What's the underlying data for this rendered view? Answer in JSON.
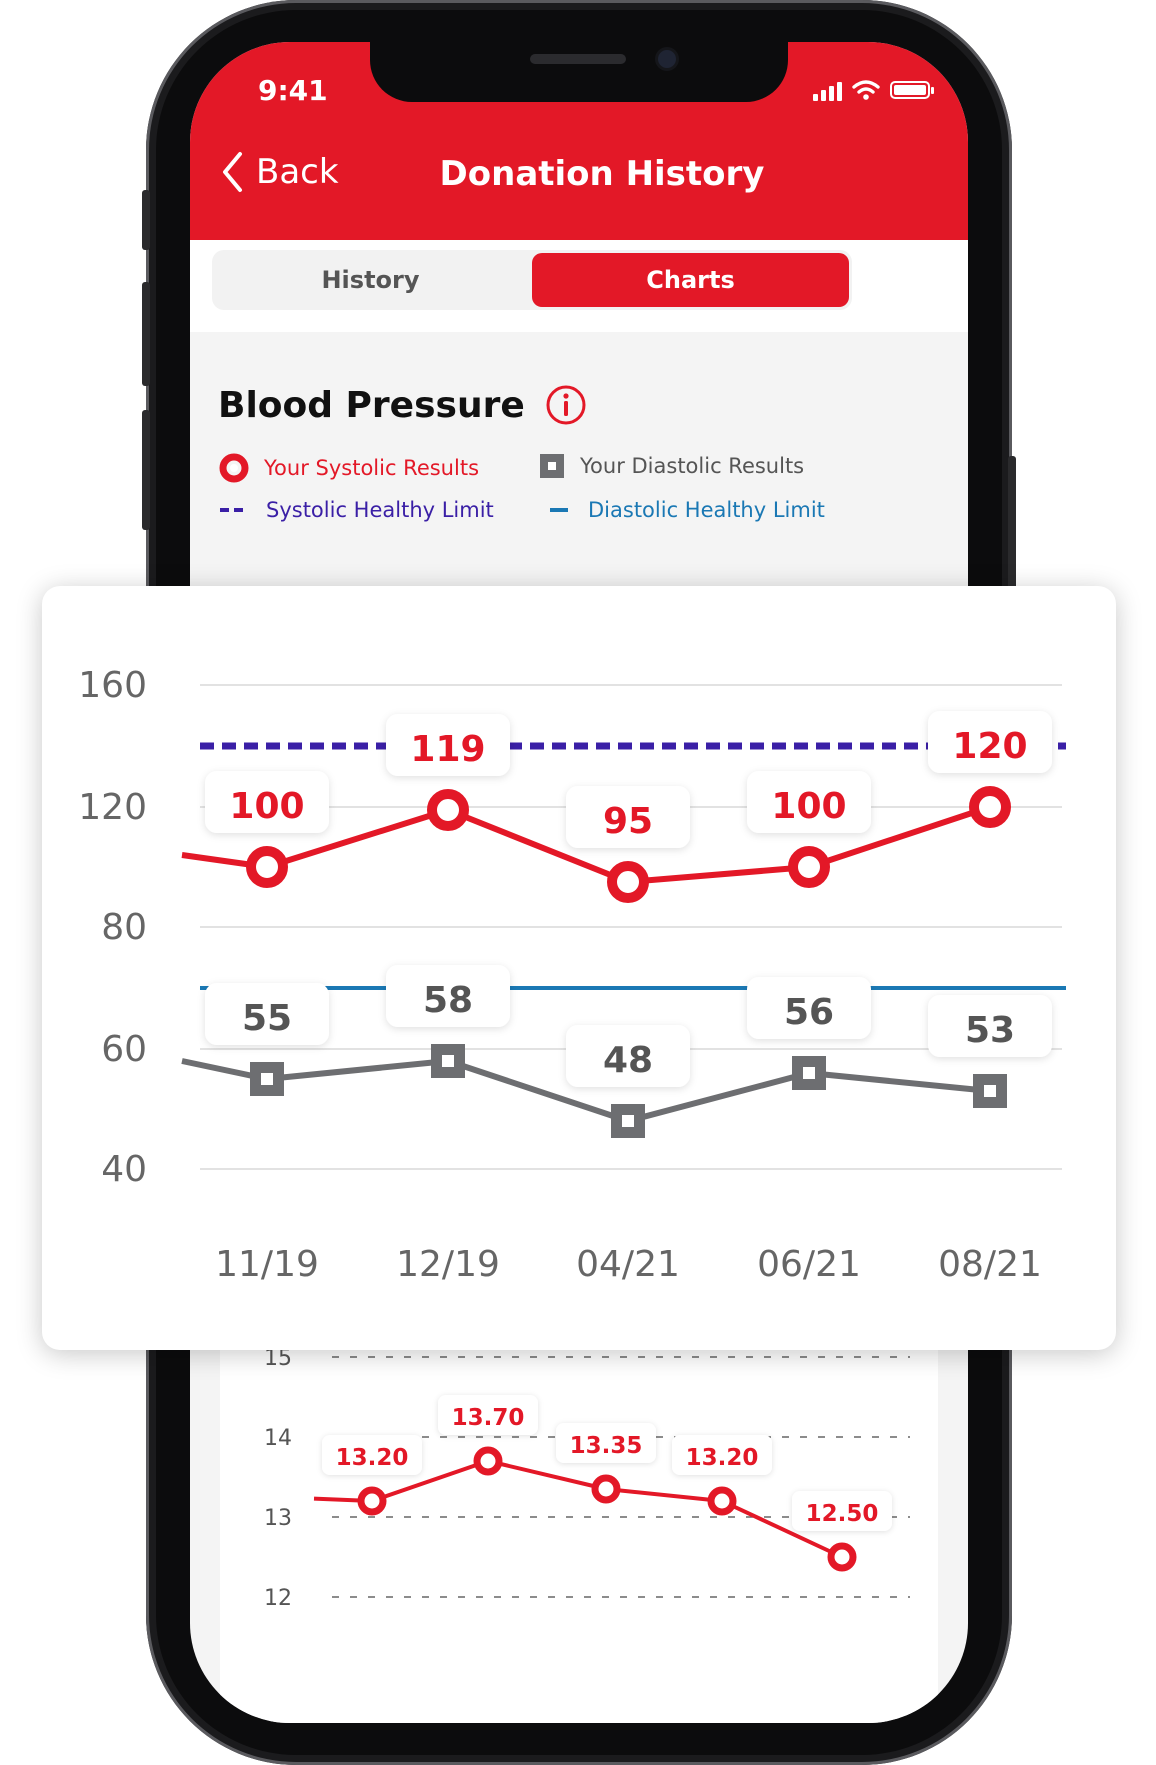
{
  "status_bar": {
    "time": "9:41",
    "icons": [
      "cellular-signal-icon",
      "wifi-icon",
      "battery-icon"
    ]
  },
  "nav": {
    "back_label": "Back",
    "title": "Donation History"
  },
  "tabs": [
    {
      "label": "History",
      "active": false
    },
    {
      "label": "Charts",
      "active": true
    }
  ],
  "section": {
    "title": "Blood Pressure",
    "info_icon": "info-icon"
  },
  "legend": {
    "systolic_results": "Your Systolic Results",
    "diastolic_results": "Your Diastolic Results",
    "systolic_limit": "Systolic Healthy Limit",
    "diastolic_limit": "Diastolic Healthy Limit"
  },
  "colors": {
    "brand_red": "#e31827",
    "systolic_limit": "#3a1fa6",
    "diastolic_limit": "#1a78b4",
    "diastolic_series": "#6d6e71"
  },
  "chart_data": [
    {
      "type": "line",
      "categories": [
        "11/19",
        "12/19",
        "04/21",
        "06/21",
        "08/21"
      ],
      "y_ticks": [
        "160",
        "120",
        "80",
        "60",
        "40"
      ],
      "y_tick_values": [
        160,
        120,
        80,
        60,
        40
      ],
      "series": [
        {
          "name": "Your Systolic Results",
          "values": [
            100,
            119,
            95,
            100,
            120
          ],
          "labels": [
            "100",
            "119",
            "95",
            "100",
            "120"
          ],
          "color": "#e31827",
          "marker": "circle"
        },
        {
          "name": "Your Diastolic Results",
          "values": [
            55,
            58,
            48,
            56,
            53
          ],
          "labels": [
            "55",
            "58",
            "48",
            "56",
            "53"
          ],
          "color": "#6d6e71",
          "marker": "square"
        },
        {
          "name": "Systolic Healthy Limit",
          "values": [
            140,
            140,
            140,
            140,
            140
          ],
          "style": "dashed",
          "color": "#3a1fa6"
        },
        {
          "name": "Diastolic Healthy Limit",
          "values": [
            70,
            70,
            70,
            70,
            70
          ],
          "style": "solid",
          "color": "#1a78b4"
        }
      ],
      "grid": true
    },
    {
      "type": "line",
      "y_ticks": [
        "15",
        "14",
        "13",
        "12"
      ],
      "y_tick_values": [
        15,
        14,
        13,
        12
      ],
      "series": [
        {
          "values": [
            13.2,
            13.7,
            13.35,
            13.2,
            12.5
          ],
          "labels": [
            "13.20",
            "13.70",
            "13.35",
            "13.20",
            "12.50"
          ],
          "color": "#e31827",
          "marker": "circle"
        }
      ],
      "grid": true,
      "grid_style": "dashed"
    }
  ]
}
